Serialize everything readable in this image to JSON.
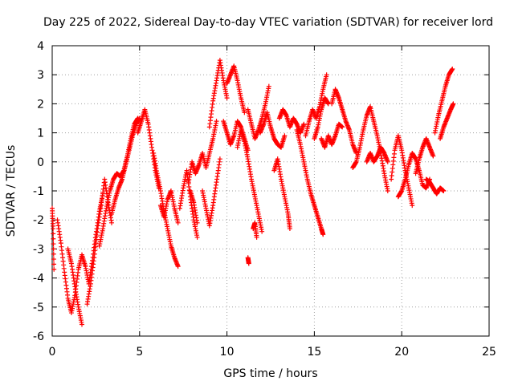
{
  "chart_data": {
    "type": "scatter",
    "title": "Day 225 of 2022, Sidereal Day-to-day VTEC variation (SDTVAR) for receiver lord",
    "xlabel": "GPS time / hours",
    "ylabel": "SDTVAR / TECUs",
    "xlim": [
      0,
      25
    ],
    "ylim": [
      -6,
      4
    ],
    "xticks": [
      0,
      5,
      10,
      15,
      20,
      25
    ],
    "yticks": [
      -6,
      -5,
      -4,
      -3,
      -2,
      -1,
      0,
      1,
      2,
      3,
      4
    ],
    "xtick_labels": [
      "0",
      "5",
      "10",
      "15",
      "20",
      "25"
    ],
    "ytick_labels": [
      "-6",
      "-5",
      "-4",
      "-3",
      "-2",
      "-1",
      "0",
      "1",
      "2",
      "3",
      "4"
    ],
    "grid": true,
    "marker": "+",
    "color": "#ff0000",
    "series": [
      {
        "name": "SDTVAR",
        "tracks": [
          [
            [
              0.0,
              -1.6
            ],
            [
              0.05,
              -2.3
            ],
            [
              0.1,
              -3.7
            ]
          ],
          [
            [
              0.3,
              -2.0
            ],
            [
              0.5,
              -2.8
            ],
            [
              0.7,
              -3.8
            ],
            [
              0.9,
              -4.7
            ],
            [
              1.1,
              -5.2
            ],
            [
              1.3,
              -4.6
            ],
            [
              1.5,
              -3.7
            ],
            [
              1.7,
              -3.2
            ],
            [
              1.9,
              -3.6
            ],
            [
              2.1,
              -4.2
            ],
            [
              2.3,
              -3.4
            ],
            [
              2.5,
              -2.5
            ],
            [
              2.7,
              -1.7
            ],
            [
              2.9,
              -1.1
            ]
          ],
          [
            [
              0.9,
              -3.0
            ],
            [
              1.1,
              -3.5
            ],
            [
              1.3,
              -4.3
            ],
            [
              1.5,
              -5.0
            ],
            [
              1.7,
              -5.6
            ]
          ],
          [
            [
              2.0,
              -4.9
            ],
            [
              2.2,
              -4.2
            ],
            [
              2.4,
              -3.3
            ],
            [
              2.6,
              -2.3
            ],
            [
              2.8,
              -1.5
            ],
            [
              3.0,
              -0.6
            ],
            [
              3.2,
              -1.4
            ],
            [
              3.4,
              -2.1
            ]
          ],
          [
            [
              2.7,
              -2.9
            ],
            [
              2.9,
              -2.3
            ],
            [
              3.1,
              -1.6
            ],
            [
              3.3,
              -1.0
            ],
            [
              3.5,
              -0.6
            ],
            [
              3.7,
              -0.4
            ],
            [
              3.9,
              -0.5
            ],
            [
              4.1,
              -0.3
            ],
            [
              4.3,
              0.2
            ],
            [
              4.5,
              0.8
            ],
            [
              4.7,
              1.3
            ],
            [
              4.9,
              1.5
            ]
          ],
          [
            [
              3.4,
              -1.8
            ],
            [
              3.6,
              -1.3
            ],
            [
              3.8,
              -0.9
            ],
            [
              4.0,
              -0.6
            ],
            [
              4.2,
              -0.1
            ],
            [
              4.4,
              0.4
            ],
            [
              4.6,
              0.9
            ],
            [
              4.8,
              1.3
            ],
            [
              5.0,
              1.5
            ]
          ],
          [
            [
              4.9,
              1.0
            ],
            [
              5.1,
              1.4
            ],
            [
              5.3,
              1.8
            ],
            [
              5.5,
              1.3
            ],
            [
              5.7,
              0.5
            ],
            [
              5.9,
              -0.3
            ],
            [
              6.1,
              -0.9
            ]
          ],
          [
            [
              5.8,
              0.3
            ],
            [
              6.0,
              -0.4
            ],
            [
              6.2,
              -1.0
            ],
            [
              6.4,
              -1.7
            ],
            [
              6.6,
              -2.3
            ],
            [
              6.8,
              -2.9
            ],
            [
              7.0,
              -3.3
            ],
            [
              7.2,
              -3.6
            ]
          ],
          [
            [
              6.2,
              -1.5
            ],
            [
              6.4,
              -1.9
            ],
            [
              6.6,
              -1.3
            ],
            [
              6.8,
              -1.0
            ],
            [
              7.0,
              -1.6
            ],
            [
              7.2,
              -2.1
            ]
          ],
          [
            [
              7.3,
              -1.6
            ],
            [
              7.5,
              -0.9
            ],
            [
              7.7,
              -0.3
            ],
            [
              7.9,
              -1.2
            ],
            [
              8.1,
              -2.0
            ],
            [
              8.3,
              -2.6
            ]
          ],
          [
            [
              7.8,
              -0.7
            ],
            [
              8.0,
              0.0
            ],
            [
              8.2,
              -0.4
            ],
            [
              8.4,
              -0.1
            ],
            [
              8.6,
              0.3
            ],
            [
              8.8,
              -0.2
            ],
            [
              9.0,
              0.3
            ],
            [
              9.2,
              0.8
            ],
            [
              9.4,
              1.4
            ]
          ],
          [
            [
              8.6,
              -1.0
            ],
            [
              8.8,
              -1.6
            ],
            [
              9.0,
              -2.2
            ],
            [
              9.2,
              -1.5
            ],
            [
              9.4,
              -0.7
            ],
            [
              9.6,
              0.1
            ]
          ],
          [
            [
              9.0,
              1.2
            ],
            [
              9.2,
              2.1
            ],
            [
              9.4,
              2.8
            ],
            [
              9.6,
              3.5
            ],
            [
              9.8,
              2.8
            ],
            [
              10.0,
              2.2
            ]
          ],
          [
            [
              10.0,
              2.7
            ],
            [
              10.2,
              3.0
            ],
            [
              10.4,
              3.3
            ],
            [
              10.6,
              2.8
            ],
            [
              10.8,
              2.2
            ],
            [
              11.0,
              1.7
            ]
          ],
          [
            [
              9.8,
              1.4
            ],
            [
              10.0,
              1.0
            ],
            [
              10.2,
              0.6
            ],
            [
              10.4,
              0.9
            ],
            [
              10.6,
              1.4
            ],
            [
              10.8,
              1.2
            ],
            [
              11.0,
              0.8
            ],
            [
              11.2,
              0.4
            ]
          ],
          [
            [
              10.6,
              0.5
            ],
            [
              10.8,
              1.1
            ],
            [
              11.0,
              0.7
            ],
            [
              11.2,
              0.1
            ],
            [
              11.4,
              -0.6
            ],
            [
              11.6,
              -1.2
            ],
            [
              11.8,
              -1.8
            ],
            [
              12.0,
              -2.4
            ]
          ],
          [
            [
              11.2,
              1.8
            ],
            [
              11.4,
              1.3
            ],
            [
              11.6,
              0.8
            ],
            [
              11.8,
              1.1
            ],
            [
              12.0,
              1.5
            ],
            [
              12.2,
              2.0
            ],
            [
              12.4,
              2.6
            ]
          ],
          [
            [
              11.9,
              1.0
            ],
            [
              12.1,
              1.3
            ],
            [
              12.3,
              1.7
            ],
            [
              12.5,
              1.2
            ],
            [
              12.7,
              0.8
            ],
            [
              12.9,
              0.6
            ],
            [
              13.1,
              0.5
            ],
            [
              13.3,
              0.9
            ]
          ],
          [
            [
              12.7,
              -0.3
            ],
            [
              12.9,
              0.1
            ],
            [
              13.1,
              -0.6
            ],
            [
              13.3,
              -1.2
            ],
            [
              13.5,
              -1.8
            ],
            [
              13.6,
              -2.3
            ]
          ],
          [
            [
              13.0,
              1.5
            ],
            [
              13.2,
              1.8
            ],
            [
              13.4,
              1.6
            ],
            [
              13.6,
              1.2
            ],
            [
              13.8,
              1.5
            ],
            [
              14.0,
              1.3
            ],
            [
              14.2,
              1.0
            ],
            [
              14.4,
              1.3
            ]
          ],
          [
            [
              14.0,
              1.1
            ],
            [
              14.2,
              0.6
            ],
            [
              14.4,
              0.0
            ],
            [
              14.6,
              -0.6
            ],
            [
              14.8,
              -1.1
            ],
            [
              15.0,
              -1.5
            ],
            [
              15.2,
              -1.9
            ],
            [
              15.4,
              -2.3
            ],
            [
              15.5,
              -2.5
            ]
          ],
          [
            [
              14.5,
              0.9
            ],
            [
              14.7,
              1.4
            ],
            [
              14.9,
              1.8
            ],
            [
              15.1,
              1.5
            ],
            [
              15.3,
              1.9
            ],
            [
              15.5,
              2.5
            ],
            [
              15.7,
              3.0
            ]
          ],
          [
            [
              15.0,
              0.8
            ],
            [
              15.2,
              1.2
            ],
            [
              15.4,
              1.8
            ],
            [
              15.6,
              2.2
            ],
            [
              15.8,
              2.0
            ]
          ],
          [
            [
              15.4,
              0.8
            ],
            [
              15.6,
              0.5
            ],
            [
              15.8,
              0.9
            ],
            [
              16.0,
              0.6
            ],
            [
              16.2,
              0.9
            ],
            [
              16.4,
              1.3
            ],
            [
              16.6,
              1.2
            ]
          ],
          [
            [
              16.0,
              2.0
            ],
            [
              16.2,
              2.5
            ],
            [
              16.4,
              2.2
            ],
            [
              16.6,
              1.8
            ],
            [
              16.8,
              1.4
            ],
            [
              17.0,
              1.1
            ],
            [
              17.2,
              0.6
            ],
            [
              17.4,
              0.3
            ]
          ],
          [
            [
              17.2,
              -0.2
            ],
            [
              17.4,
              0.0
            ],
            [
              17.6,
              0.5
            ],
            [
              17.8,
              1.1
            ],
            [
              18.0,
              1.6
            ],
            [
              18.2,
              1.9
            ],
            [
              18.4,
              1.4
            ],
            [
              18.6,
              0.9
            ],
            [
              18.8,
              0.3
            ],
            [
              19.0,
              -0.4
            ],
            [
              19.2,
              -1.0
            ]
          ],
          [
            [
              18.0,
              0.0
            ],
            [
              18.2,
              0.3
            ],
            [
              18.4,
              0.0
            ],
            [
              18.6,
              0.2
            ],
            [
              18.8,
              0.5
            ],
            [
              19.0,
              0.3
            ],
            [
              19.2,
              0.0
            ]
          ],
          [
            [
              19.4,
              -0.6
            ],
            [
              19.6,
              0.4
            ],
            [
              19.8,
              0.9
            ],
            [
              20.0,
              0.4
            ],
            [
              20.2,
              -0.3
            ],
            [
              20.4,
              -0.9
            ],
            [
              20.6,
              -1.5
            ]
          ],
          [
            [
              19.8,
              -1.2
            ],
            [
              20.0,
              -1.0
            ],
            [
              20.2,
              -0.6
            ],
            [
              20.4,
              -0.1
            ],
            [
              20.6,
              0.3
            ],
            [
              20.8,
              0.1
            ],
            [
              21.0,
              -0.3
            ],
            [
              21.2,
              -0.8
            ],
            [
              21.4,
              -0.9
            ],
            [
              21.6,
              -0.6
            ]
          ],
          [
            [
              20.8,
              -0.4
            ],
            [
              21.0,
              0.1
            ],
            [
              21.2,
              0.5
            ],
            [
              21.4,
              0.8
            ],
            [
              21.6,
              0.5
            ],
            [
              21.8,
              0.2
            ]
          ],
          [
            [
              21.4,
              -0.6
            ],
            [
              21.6,
              -0.7
            ],
            [
              21.8,
              -0.9
            ],
            [
              22.0,
              -1.1
            ],
            [
              22.2,
              -0.9
            ],
            [
              22.4,
              -1.0
            ]
          ],
          [
            [
              21.9,
              1.0
            ],
            [
              22.1,
              1.6
            ],
            [
              22.3,
              2.1
            ],
            [
              22.5,
              2.6
            ],
            [
              22.7,
              3.0
            ],
            [
              22.9,
              3.2
            ]
          ],
          [
            [
              22.2,
              0.8
            ],
            [
              22.4,
              1.2
            ],
            [
              22.6,
              1.5
            ],
            [
              22.8,
              1.8
            ],
            [
              22.95,
              2.0
            ]
          ],
          [
            [
              7.9,
              -1.0
            ],
            [
              8.1,
              -1.4
            ],
            [
              8.3,
              -2.1
            ]
          ],
          [
            [
              11.2,
              -3.3
            ],
            [
              11.25,
              -3.5
            ]
          ],
          [
            [
              11.5,
              -2.3
            ],
            [
              11.6,
              -2.1
            ],
            [
              11.7,
              -2.6
            ]
          ]
        ]
      }
    ]
  }
}
